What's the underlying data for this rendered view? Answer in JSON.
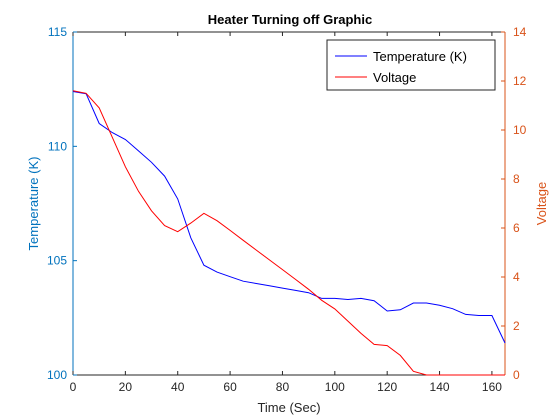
{
  "chart_data": {
    "type": "line",
    "title": "Heater Turning off Graphic",
    "xlabel": "Time (Sec)",
    "ylabel_left": "Temperature (K)",
    "ylabel_right": "Voltage",
    "xlim": [
      0,
      165
    ],
    "ylim_left": [
      100,
      115
    ],
    "ylim_right": [
      0,
      14
    ],
    "x_ticks": [
      0,
      20,
      40,
      60,
      80,
      100,
      120,
      140,
      160
    ],
    "y_ticks_left": [
      100,
      105,
      110,
      115
    ],
    "y_ticks_right": [
      0,
      2,
      4,
      6,
      8,
      10,
      12,
      14
    ],
    "legend_position": "top-right",
    "grid": false,
    "colors": {
      "left_axis": "#0072bd",
      "right_axis": "#d95319",
      "temperature_line": "#0000ff",
      "voltage_line": "#ff0000",
      "frame": "#262626"
    },
    "series": [
      {
        "name": "Temperature (K)",
        "axis": "left",
        "x": [
          0,
          5,
          10,
          15,
          20,
          25,
          30,
          35,
          40,
          45,
          50,
          55,
          60,
          65,
          70,
          75,
          80,
          85,
          90,
          95,
          100,
          105,
          110,
          115,
          120,
          125,
          130,
          135,
          140,
          145,
          150,
          155,
          160,
          165
        ],
        "values": [
          112.4,
          112.3,
          111.0,
          110.6,
          110.3,
          109.8,
          109.3,
          108.7,
          107.7,
          106.0,
          104.8,
          104.5,
          104.3,
          104.1,
          104.0,
          103.9,
          103.8,
          103.7,
          103.6,
          103.35,
          103.35,
          103.3,
          103.35,
          103.25,
          102.8,
          102.85,
          103.15,
          103.15,
          103.05,
          102.9,
          102.65,
          102.6,
          102.6,
          101.4
        ]
      },
      {
        "name": "Voltage",
        "axis": "right",
        "x": [
          0,
          5,
          10,
          15,
          20,
          25,
          30,
          35,
          40,
          45,
          50,
          55,
          60,
          65,
          70,
          75,
          80,
          85,
          90,
          95,
          100,
          105,
          110,
          115,
          120,
          125,
          130,
          135,
          140,
          145,
          150,
          155,
          160,
          165
        ],
        "values": [
          11.6,
          11.5,
          10.9,
          9.7,
          8.5,
          7.5,
          6.7,
          6.1,
          5.85,
          6.2,
          6.6,
          6.3,
          5.9,
          5.5,
          5.1,
          4.7,
          4.3,
          3.9,
          3.5,
          3.05,
          2.7,
          2.2,
          1.7,
          1.25,
          1.2,
          0.8,
          0.15,
          0.0,
          0.0,
          0.0,
          0.0,
          0.0,
          0.0,
          0.0
        ]
      }
    ]
  }
}
